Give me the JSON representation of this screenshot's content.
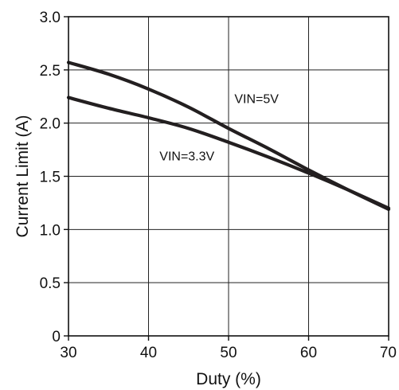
{
  "chart_data": {
    "type": "line",
    "xlabel": "Duty (%)",
    "ylabel": "Current Limit (A)",
    "xlim": [
      30,
      70
    ],
    "ylim": [
      0,
      3.0
    ],
    "x_ticks": [
      "30",
      "40",
      "50",
      "60",
      "70"
    ],
    "y_ticks": [
      "0",
      "0.5",
      "1.0",
      "1.5",
      "2.0",
      "2.5",
      "3.0"
    ],
    "grid": true,
    "series": [
      {
        "name": "VIN=5V",
        "color": "#231f20",
        "x": [
          30,
          35,
          40,
          45,
          50,
          55,
          60,
          65,
          70
        ],
        "y": [
          2.57,
          2.46,
          2.32,
          2.15,
          1.95,
          1.76,
          1.56,
          1.37,
          1.19
        ]
      },
      {
        "name": "VIN=3.3V",
        "color": "#231f20",
        "x": [
          30,
          35,
          40,
          45,
          50,
          55,
          60,
          65,
          70
        ],
        "y": [
          2.24,
          2.14,
          2.05,
          1.95,
          1.82,
          1.68,
          1.53,
          1.37,
          1.2
        ]
      }
    ],
    "annotations": [
      {
        "text": "VIN=5V",
        "x": 53.5,
        "y": 2.19
      },
      {
        "text": "VIN=3.3V",
        "x": 44.8,
        "y": 1.65
      }
    ]
  }
}
